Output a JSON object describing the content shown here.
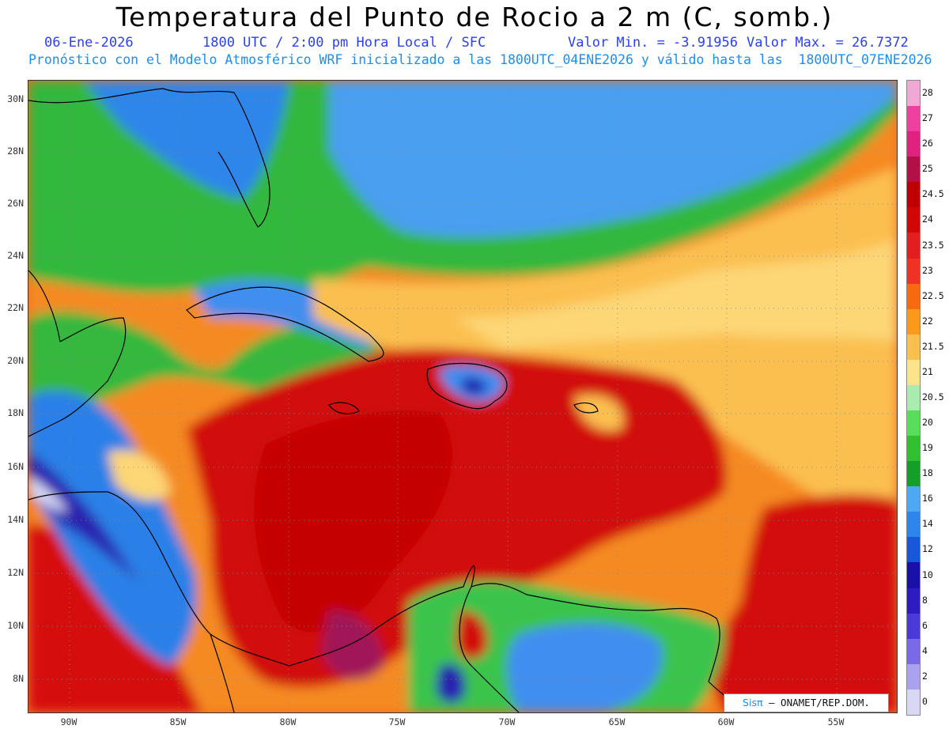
{
  "header": {
    "title": "Temperatura del Punto de Rocio a 2 m (C, somb.)",
    "date": "06-Ene-2026",
    "time": "1800 UTC / 2:00 pm Hora Local / SFC",
    "min": "Valor Min. = -3.91956",
    "max": "Valor Max. = 26.7372",
    "model_line": "Pronóstico con el Modelo Atmosférico WRF inicializado a las 1800UTC_04ENE2026 y válido hasta las  1800UTC_07ENE2026"
  },
  "lat_labels": [
    "30N",
    "28N",
    "26N",
    "24N",
    "22N",
    "20N",
    "18N",
    "16N",
    "14N",
    "12N",
    "10N",
    "8N"
  ],
  "lon_labels": [
    "90W",
    "85W",
    "80W",
    "75W",
    "70W",
    "65W",
    "60W",
    "55W"
  ],
  "colorbar": {
    "labels": [
      "28",
      "27",
      "26",
      "25",
      "24.5",
      "24",
      "23.5",
      "23",
      "22.5",
      "22",
      "21.5",
      "21",
      "20.5",
      "20",
      "19",
      "18",
      "16",
      "14",
      "12",
      "10",
      "8",
      "6",
      "4",
      "2",
      "0"
    ],
    "colors": [
      "#f2a8d4",
      "#ef40a0",
      "#df2280",
      "#b41048",
      "#c00000",
      "#d10606",
      "#e41e1e",
      "#f03222",
      "#f86a10",
      "#f99a1c",
      "#fbbf50",
      "#fde38c",
      "#a8ecb0",
      "#58de5a",
      "#30c030",
      "#14a028",
      "#4fa8f4",
      "#2c86ec",
      "#1758d8",
      "#1a10a8",
      "#2e1cc0",
      "#4a3ad8",
      "#7a6ae8",
      "#aaa2f0",
      "#d8d8f6"
    ]
  },
  "credit": {
    "logo": "Sisπ",
    "text": " – ONAMET/REP.DOM."
  }
}
